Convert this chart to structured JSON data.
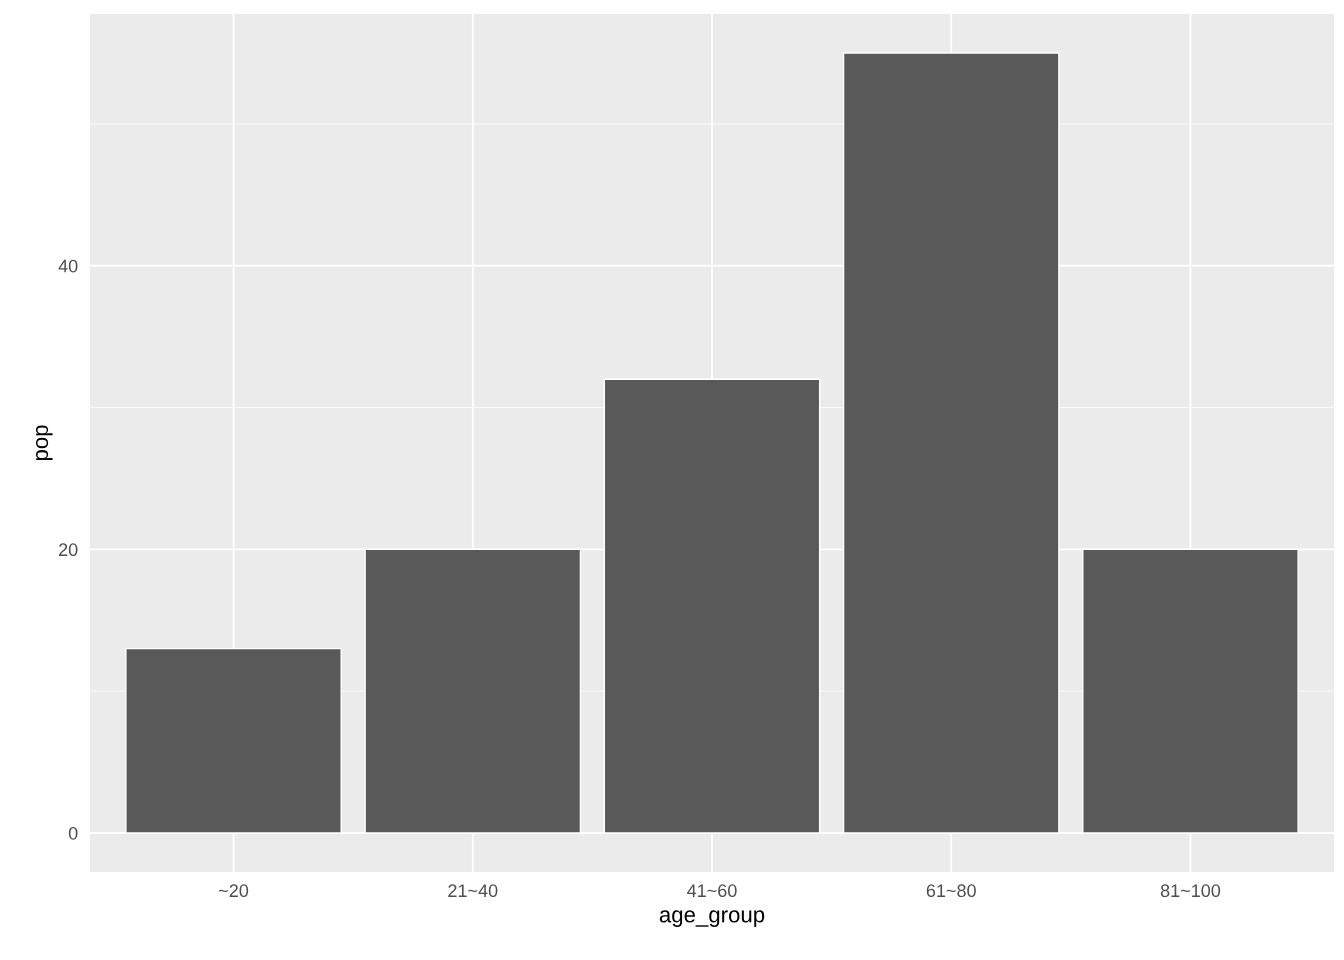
{
  "chart_data": {
    "type": "bar",
    "xlabel": "age_group",
    "ylabel": "pop",
    "categories": [
      "~20",
      "21~40",
      "41~60",
      "61~80",
      "81~100"
    ],
    "values": [
      13,
      20,
      32,
      55,
      20
    ],
    "color": "#595959",
    "ylim": [
      -2.75,
      57.75
    ],
    "yticks": [
      0,
      20,
      40
    ],
    "grid": true
  }
}
